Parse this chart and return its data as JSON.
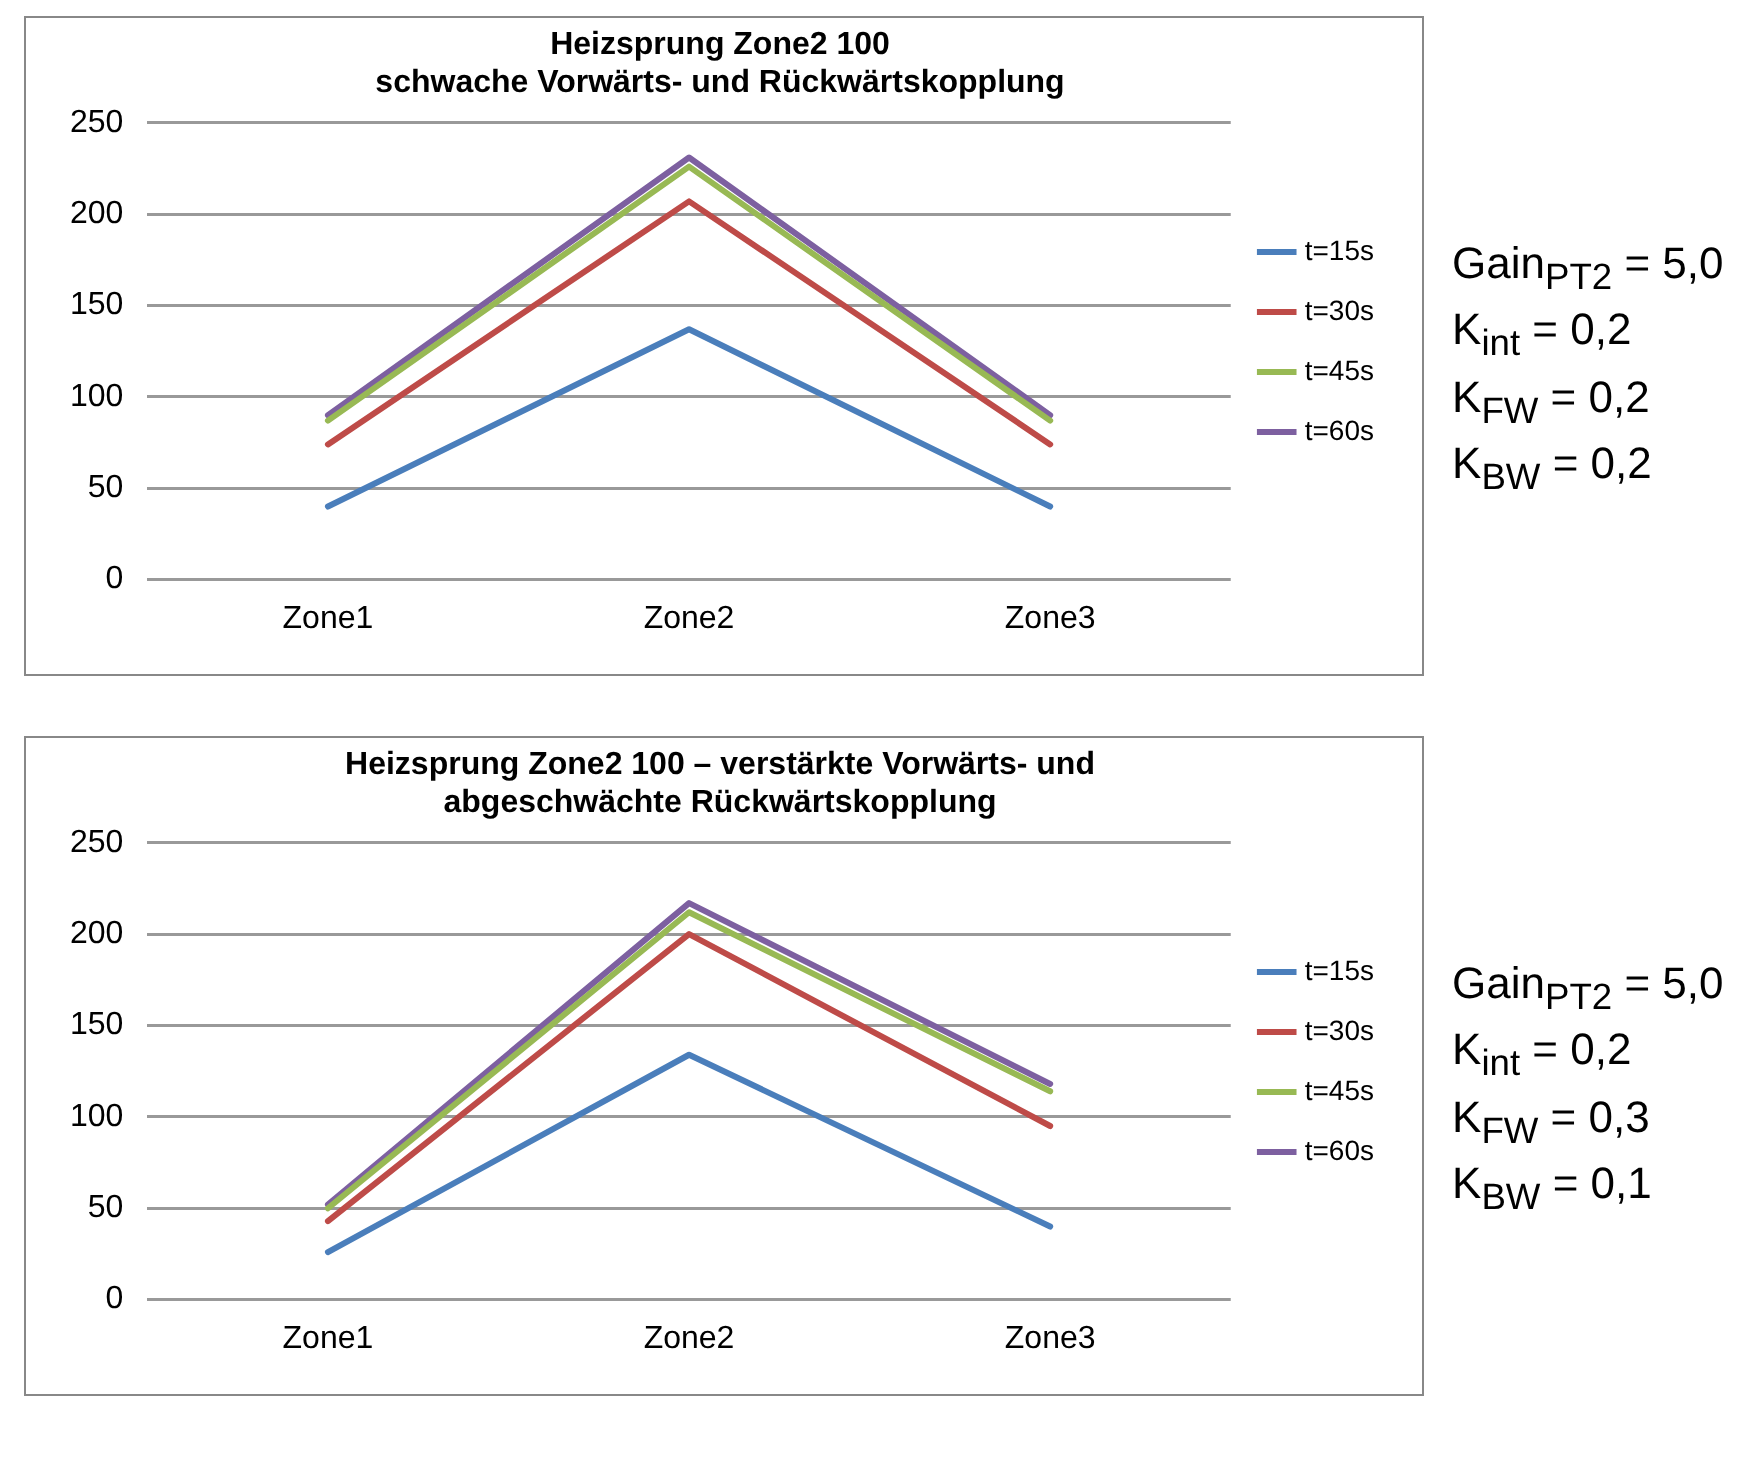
{
  "chart_data": [
    {
      "type": "line",
      "title": "Heizsprung Zone2 100\nschwache Vorwärts- und Rückwärtskopplung",
      "categories": [
        "Zone1",
        "Zone2",
        "Zone3"
      ],
      "series": [
        {
          "name": "t=15s",
          "color": "#4a7ebb",
          "values": [
            40,
            137,
            40
          ]
        },
        {
          "name": "t=30s",
          "color": "#be4b48",
          "values": [
            74,
            207,
            74
          ]
        },
        {
          "name": "t=45s",
          "color": "#98b954",
          "values": [
            87,
            226,
            87
          ]
        },
        {
          "name": "t=60s",
          "color": "#7d60a0",
          "values": [
            90,
            231,
            90
          ]
        }
      ],
      "ylim": [
        0,
        250
      ],
      "yticks": [
        0,
        50,
        100,
        150,
        200,
        250
      ],
      "grid": "y",
      "legend": "right",
      "marker": "none",
      "line_style": "solid",
      "annotations": [
        "Gain$_{PT2}$ = 5,0",
        "K$_{int}$ = 0,2",
        "K$_{FW}$ = 0,2",
        "K$_{BW}$ = 0,2"
      ]
    },
    {
      "type": "line",
      "title": "Heizsprung Zone2 100 – verstärkte Vorwärts- und\nabgeschwächte Rückwärtskopplung",
      "categories": [
        "Zone1",
        "Zone2",
        "Zone3"
      ],
      "series": [
        {
          "name": "t=15s",
          "color": "#4a7ebb",
          "values": [
            26,
            134,
            40
          ]
        },
        {
          "name": "t=30s",
          "color": "#be4b48",
          "values": [
            43,
            200,
            95
          ]
        },
        {
          "name": "t=45s",
          "color": "#98b954",
          "values": [
            50,
            212,
            114
          ]
        },
        {
          "name": "t=60s",
          "color": "#7d60a0",
          "values": [
            52,
            217,
            118
          ]
        }
      ],
      "ylim": [
        0,
        250
      ],
      "yticks": [
        0,
        50,
        100,
        150,
        200,
        250
      ],
      "grid": "y",
      "legend": "right",
      "marker": "none",
      "line_style": "solid",
      "annotations": [
        "Gain$_{PT2}$ = 5,0",
        "K$_{int}$ = 0,2",
        "K$_{FW}$ = 0,3",
        "K$_{BW}$ = 0,1"
      ]
    }
  ]
}
